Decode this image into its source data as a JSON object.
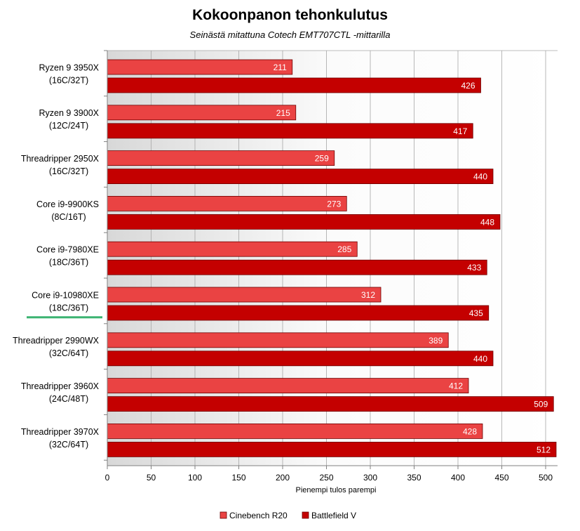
{
  "chart_data": {
    "type": "bar",
    "orientation": "horizontal",
    "title": "Kokoonpanon tehonkulutus",
    "subtitle": "Seinästä mitattuna Cotech EMT707CTL -mittarilla",
    "xlabel": "Pienempi tulos parempi",
    "ylabel": "",
    "xlim": [
      0,
      500
    ],
    "xticks": [
      0,
      50,
      100,
      150,
      200,
      250,
      300,
      350,
      400,
      450,
      500
    ],
    "grid": true,
    "legend_position": "bottom",
    "highlighted_category": "Core i9-10980XE (18C/36T)",
    "highlight_color": "#3cb371",
    "categories": [
      {
        "name": "Ryzen 9 3950X",
        "config": "(16C/32T)"
      },
      {
        "name": "Ryzen 9 3900X",
        "config": "(12C/24T)"
      },
      {
        "name": "Threadripper 2950X",
        "config": "(16C/32T)"
      },
      {
        "name": "Core i9-9900KS",
        "config": "(8C/16T)"
      },
      {
        "name": "Core i9-7980XE",
        "config": "(18C/36T)"
      },
      {
        "name": "Core i9-10980XE",
        "config": "(18C/36T)"
      },
      {
        "name": "Threadripper 2990WX",
        "config": "(32C/64T)"
      },
      {
        "name": "Threadripper 3960X",
        "config": "(24C/48T)"
      },
      {
        "name": "Threadripper 3970X",
        "config": "(32C/64T)"
      }
    ],
    "series": [
      {
        "name": "Cinebench R20",
        "color": "#ea4343",
        "values": [
          211,
          215,
          259,
          273,
          285,
          312,
          389,
          412,
          428
        ]
      },
      {
        "name": "Battlefield V",
        "color": "#c40000",
        "values": [
          426,
          417,
          440,
          448,
          433,
          435,
          440,
          509,
          512
        ]
      }
    ]
  }
}
